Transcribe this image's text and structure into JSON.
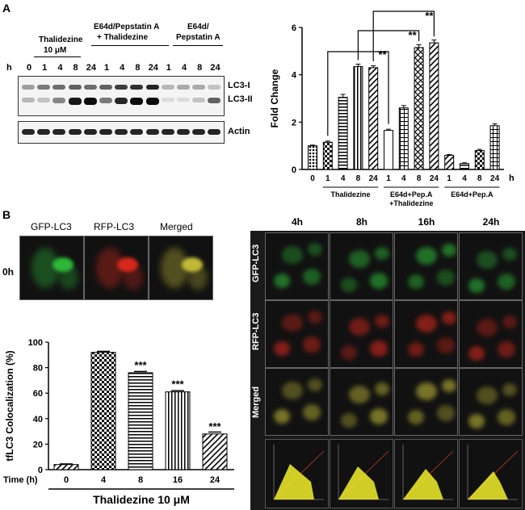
{
  "panels": {
    "a": "A",
    "b": "B"
  },
  "blot": {
    "row_label": "h",
    "groups": [
      {
        "label_line1": "Thalidezine",
        "label_line2": "10 μM"
      },
      {
        "label_line1": "E64d/Pepstatin A",
        "label_line2": "+ Thalidezine"
      },
      {
        "label_line1": "E64d/",
        "label_line2": "Pepstatin A"
      }
    ],
    "times": [
      "0",
      "1",
      "4",
      "8",
      "24",
      "1",
      "4",
      "8",
      "24",
      "1",
      "4",
      "8",
      "24"
    ],
    "band_labels": [
      "LC3-I",
      "LC3-II",
      "Actin"
    ]
  },
  "chart_data": [
    {
      "type": "bar",
      "ylabel": "Fold Change",
      "xunit": "h",
      "ylim": [
        0,
        6
      ],
      "yticks": [
        "0",
        "2",
        "4",
        "6"
      ],
      "categories": [
        "0",
        "1",
        "4",
        "8",
        "24",
        "1",
        "4",
        "8",
        "24",
        "1",
        "4",
        "8",
        "24"
      ],
      "values": [
        1.0,
        1.15,
        3.05,
        4.35,
        4.3,
        1.65,
        2.6,
        5.15,
        5.35,
        0.6,
        0.25,
        0.8,
        1.85
      ],
      "errors": [
        0.03,
        0.05,
        0.12,
        0.1,
        0.08,
        0.05,
        0.1,
        0.12,
        0.12,
        0.03,
        0.03,
        0.05,
        0.08
      ],
      "groups": [
        {
          "label": "Thalidezine"
        },
        {
          "label": "E64d+Pep.A\n+Thalidezine"
        },
        {
          "label": "E64d+Pep.A"
        }
      ],
      "annotations": [
        "**",
        "**",
        "**"
      ]
    },
    {
      "type": "bar",
      "ylabel": "tfLC3 Colocalization (%)",
      "xlabel_prefix": "Time (h)",
      "xlabel": "Thalidezine 10 μM",
      "ylim": [
        0,
        100
      ],
      "yticks": [
        "0",
        "20",
        "40",
        "60",
        "80",
        "100"
      ],
      "categories": [
        "0",
        "4",
        "8",
        "16",
        "24"
      ],
      "values": [
        4,
        92,
        76,
        61,
        28
      ],
      "errors": [
        0.5,
        0.8,
        1.0,
        1.0,
        1.5
      ],
      "annotations": [
        "",
        "",
        "***",
        "***",
        "***"
      ]
    }
  ],
  "microscopy": {
    "channels": [
      "GFP-LC3",
      "RFP-LC3",
      "Merged"
    ],
    "baseline_time": "0h",
    "times": [
      "4h",
      "8h",
      "16h",
      "24h"
    ],
    "colors": {
      "gfp": "#2fbf3a",
      "rfp": "#e02a1e",
      "merged": "#c9c23a",
      "scatter": "#f2ee2a"
    }
  }
}
